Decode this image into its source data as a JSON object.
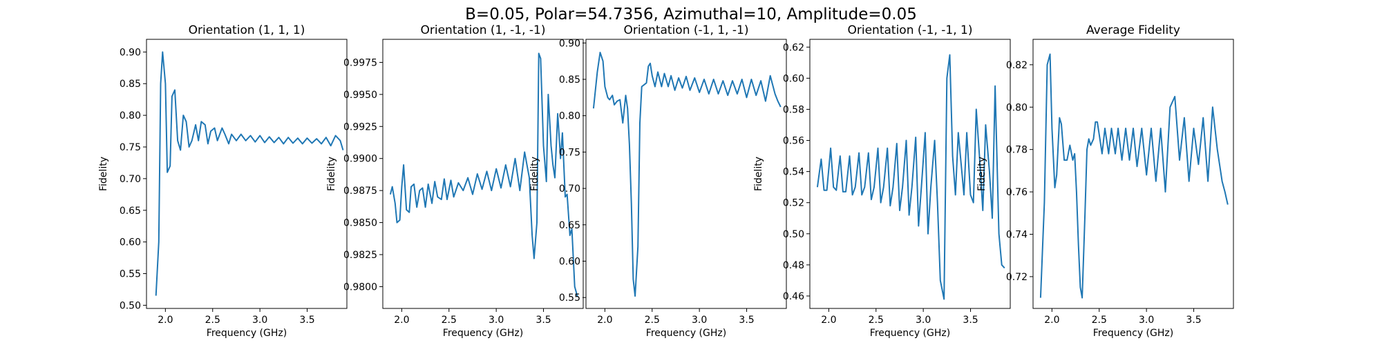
{
  "suptitle": "B=0.05, Polar=54.7356, Azimuthal=10, Amplitude=0.05",
  "line_color": "#1f77b4",
  "chart_data": [
    {
      "type": "line",
      "title": "Orientation (1, 1, 1)",
      "xlabel": "Frequency (GHz)",
      "ylabel": "Fidelity",
      "xlim": [
        1.8,
        3.92
      ],
      "ylim": [
        0.495,
        0.92
      ],
      "xticks": [
        2.0,
        2.5,
        3.0,
        3.5
      ],
      "xtick_labels": [
        "2.0",
        "2.5",
        "3.0",
        "3.5"
      ],
      "yticks": [
        0.5,
        0.55,
        0.6,
        0.65,
        0.7,
        0.75,
        0.8,
        0.85,
        0.9
      ],
      "ytick_labels": [
        "0.50",
        "0.55",
        "0.60",
        "0.65",
        "0.70",
        "0.75",
        "0.80",
        "0.85",
        "0.90"
      ],
      "x": [
        1.9,
        1.93,
        1.95,
        1.97,
        2.0,
        2.02,
        2.05,
        2.07,
        2.1,
        2.13,
        2.16,
        2.19,
        2.22,
        2.25,
        2.28,
        2.32,
        2.35,
        2.38,
        2.42,
        2.45,
        2.48,
        2.52,
        2.55,
        2.6,
        2.63,
        2.67,
        2.7,
        2.75,
        2.8,
        2.85,
        2.9,
        2.95,
        3.0,
        3.05,
        3.1,
        3.15,
        3.2,
        3.25,
        3.3,
        3.35,
        3.4,
        3.45,
        3.5,
        3.55,
        3.6,
        3.65,
        3.7,
        3.75,
        3.8,
        3.85,
        3.88
      ],
      "y": [
        0.515,
        0.6,
        0.85,
        0.9,
        0.85,
        0.71,
        0.72,
        0.83,
        0.84,
        0.76,
        0.745,
        0.8,
        0.79,
        0.75,
        0.76,
        0.785,
        0.76,
        0.79,
        0.785,
        0.755,
        0.775,
        0.78,
        0.76,
        0.78,
        0.77,
        0.755,
        0.77,
        0.76,
        0.77,
        0.76,
        0.768,
        0.758,
        0.768,
        0.757,
        0.766,
        0.757,
        0.765,
        0.755,
        0.765,
        0.756,
        0.764,
        0.755,
        0.764,
        0.756,
        0.763,
        0.755,
        0.765,
        0.752,
        0.768,
        0.76,
        0.745
      ]
    },
    {
      "type": "line",
      "title": "Orientation (1, -1, -1)",
      "xlabel": "Frequency (GHz)",
      "ylabel": "Fidelity",
      "xlim": [
        1.8,
        3.92
      ],
      "ylim": [
        0.9783,
        0.9993
      ],
      "xticks": [
        2.0,
        2.5,
        3.0,
        3.5
      ],
      "xtick_labels": [
        "2.0",
        "2.5",
        "3.0",
        "3.5"
      ],
      "yticks": [
        0.98,
        0.9825,
        0.985,
        0.9875,
        0.99,
        0.9925,
        0.995,
        0.9975
      ],
      "ytick_labels": [
        "0.9800",
        "0.9825",
        "0.9850",
        "0.9875",
        "0.9900",
        "0.9925",
        "0.9950",
        "0.9975"
      ],
      "x": [
        1.88,
        1.9,
        1.93,
        1.95,
        1.98,
        2.0,
        2.02,
        2.05,
        2.08,
        2.1,
        2.13,
        2.16,
        2.19,
        2.22,
        2.25,
        2.28,
        2.32,
        2.35,
        2.38,
        2.42,
        2.45,
        2.48,
        2.52,
        2.55,
        2.6,
        2.65,
        2.7,
        2.75,
        2.8,
        2.85,
        2.9,
        2.95,
        3.0,
        3.05,
        3.1,
        3.15,
        3.2,
        3.25,
        3.3,
        3.35,
        3.38,
        3.4,
        3.43,
        3.45,
        3.47,
        3.5,
        3.53,
        3.55,
        3.58,
        3.6,
        3.62,
        3.65,
        3.68,
        3.7,
        3.73,
        3.75,
        3.78,
        3.8,
        3.83,
        3.86
      ],
      "y": [
        0.9872,
        0.9878,
        0.9865,
        0.985,
        0.9852,
        0.9878,
        0.9895,
        0.986,
        0.9858,
        0.9878,
        0.988,
        0.9862,
        0.9875,
        0.9877,
        0.9862,
        0.988,
        0.9865,
        0.9882,
        0.987,
        0.9868,
        0.9884,
        0.9868,
        0.9883,
        0.987,
        0.9881,
        0.9875,
        0.9885,
        0.9872,
        0.9888,
        0.9876,
        0.989,
        0.9875,
        0.9892,
        0.9877,
        0.9895,
        0.9878,
        0.99,
        0.9875,
        0.9905,
        0.9885,
        0.984,
        0.9822,
        0.985,
        0.9982,
        0.9978,
        0.991,
        0.9882,
        0.995,
        0.991,
        0.9895,
        0.9885,
        0.9935,
        0.99,
        0.992,
        0.987,
        0.9872,
        0.984,
        0.9845,
        0.98,
        0.9792
      ]
    },
    {
      "type": "line",
      "title": "Orientation (-1, 1, -1)",
      "xlabel": "Frequency (GHz)",
      "ylabel": "Fidelity",
      "xlim": [
        1.8,
        3.92
      ],
      "ylim": [
        0.535,
        0.905
      ],
      "xticks": [
        2.0,
        2.5,
        3.0,
        3.5
      ],
      "xtick_labels": [
        "2.0",
        "2.5",
        "3.0",
        "3.5"
      ],
      "yticks": [
        0.55,
        0.6,
        0.65,
        0.7,
        0.75,
        0.8,
        0.85,
        0.9
      ],
      "ytick_labels": [
        "0.55",
        "0.60",
        "0.65",
        "0.70",
        "0.75",
        "0.80",
        "0.85",
        "0.90"
      ],
      "x": [
        1.88,
        1.92,
        1.95,
        1.98,
        2.0,
        2.03,
        2.05,
        2.08,
        2.1,
        2.13,
        2.16,
        2.19,
        2.22,
        2.24,
        2.26,
        2.28,
        2.3,
        2.32,
        2.35,
        2.37,
        2.39,
        2.41,
        2.44,
        2.46,
        2.48,
        2.5,
        2.53,
        2.56,
        2.6,
        2.63,
        2.67,
        2.7,
        2.74,
        2.78,
        2.82,
        2.86,
        2.9,
        2.95,
        3.0,
        3.05,
        3.1,
        3.15,
        3.2,
        3.25,
        3.3,
        3.35,
        3.4,
        3.45,
        3.5,
        3.55,
        3.6,
        3.65,
        3.7,
        3.75,
        3.8,
        3.83,
        3.86
      ],
      "y": [
        0.81,
        0.86,
        0.887,
        0.875,
        0.84,
        0.825,
        0.822,
        0.828,
        0.815,
        0.82,
        0.822,
        0.79,
        0.828,
        0.81,
        0.76,
        0.68,
        0.575,
        0.552,
        0.62,
        0.79,
        0.84,
        0.842,
        0.845,
        0.868,
        0.872,
        0.855,
        0.84,
        0.86,
        0.84,
        0.858,
        0.84,
        0.855,
        0.835,
        0.852,
        0.838,
        0.854,
        0.835,
        0.852,
        0.832,
        0.85,
        0.83,
        0.85,
        0.83,
        0.848,
        0.828,
        0.848,
        0.83,
        0.85,
        0.825,
        0.85,
        0.828,
        0.848,
        0.82,
        0.855,
        0.83,
        0.82,
        0.812
      ]
    },
    {
      "type": "line",
      "title": "Orientation (-1, -1, 1)",
      "xlabel": "Frequency (GHz)",
      "ylabel": "Fidelity",
      "xlim": [
        1.8,
        3.92
      ],
      "ylim": [
        0.452,
        0.625
      ],
      "xticks": [
        2.0,
        2.5,
        3.0,
        3.5
      ],
      "xtick_labels": [
        "2.0",
        "2.5",
        "3.0",
        "3.5"
      ],
      "yticks": [
        0.46,
        0.48,
        0.5,
        0.52,
        0.54,
        0.56,
        0.58,
        0.6,
        0.62
      ],
      "ytick_labels": [
        "0.46",
        "0.48",
        "0.50",
        "0.52",
        "0.54",
        "0.56",
        "0.58",
        "0.60",
        "0.62"
      ],
      "x": [
        1.88,
        1.92,
        1.95,
        1.98,
        2.02,
        2.05,
        2.08,
        2.12,
        2.15,
        2.18,
        2.22,
        2.25,
        2.28,
        2.32,
        2.35,
        2.38,
        2.42,
        2.45,
        2.48,
        2.52,
        2.55,
        2.58,
        2.62,
        2.65,
        2.68,
        2.72,
        2.75,
        2.78,
        2.82,
        2.85,
        2.88,
        2.92,
        2.95,
        2.98,
        3.02,
        3.05,
        3.08,
        3.12,
        3.15,
        3.18,
        3.22,
        3.25,
        3.28,
        3.31,
        3.34,
        3.37,
        3.4,
        3.43,
        3.46,
        3.5,
        3.53,
        3.56,
        3.6,
        3.63,
        3.66,
        3.7,
        3.73,
        3.76,
        3.8,
        3.83,
        3.86
      ],
      "y": [
        0.53,
        0.548,
        0.528,
        0.528,
        0.555,
        0.53,
        0.528,
        0.55,
        0.527,
        0.527,
        0.55,
        0.525,
        0.53,
        0.552,
        0.525,
        0.53,
        0.552,
        0.522,
        0.53,
        0.555,
        0.52,
        0.53,
        0.555,
        0.518,
        0.53,
        0.558,
        0.515,
        0.53,
        0.56,
        0.512,
        0.53,
        0.562,
        0.505,
        0.53,
        0.565,
        0.5,
        0.53,
        0.56,
        0.52,
        0.47,
        0.458,
        0.6,
        0.615,
        0.55,
        0.525,
        0.565,
        0.545,
        0.525,
        0.565,
        0.525,
        0.52,
        0.58,
        0.545,
        0.515,
        0.57,
        0.54,
        0.51,
        0.595,
        0.5,
        0.48,
        0.478
      ]
    },
    {
      "type": "line",
      "title": "Average Fidelity",
      "xlabel": "Frequency (GHz)",
      "ylabel": "Fidelity",
      "xlim": [
        1.8,
        3.92
      ],
      "ylim": [
        0.705,
        0.832
      ],
      "xticks": [
        2.0,
        2.5,
        3.0,
        3.5
      ],
      "xtick_labels": [
        "2.0",
        "2.5",
        "3.0",
        "3.5"
      ],
      "yticks": [
        0.72,
        0.74,
        0.76,
        0.78,
        0.8,
        0.82
      ],
      "ytick_labels": [
        "0.72",
        "0.74",
        "0.76",
        "0.78",
        "0.80",
        "0.82"
      ],
      "x": [
        1.88,
        1.92,
        1.95,
        1.98,
        2.0,
        2.03,
        2.05,
        2.08,
        2.1,
        2.13,
        2.16,
        2.19,
        2.22,
        2.24,
        2.26,
        2.28,
        2.3,
        2.32,
        2.35,
        2.37,
        2.39,
        2.41,
        2.44,
        2.46,
        2.48,
        2.5,
        2.53,
        2.56,
        2.6,
        2.63,
        2.67,
        2.7,
        2.74,
        2.78,
        2.82,
        2.86,
        2.9,
        2.95,
        3.0,
        3.05,
        3.1,
        3.15,
        3.2,
        3.25,
        3.3,
        3.35,
        3.4,
        3.45,
        3.5,
        3.55,
        3.6,
        3.65,
        3.7,
        3.75,
        3.8,
        3.83,
        3.86
      ],
      "y": [
        0.71,
        0.755,
        0.82,
        0.825,
        0.79,
        0.762,
        0.768,
        0.795,
        0.792,
        0.775,
        0.775,
        0.782,
        0.775,
        0.778,
        0.76,
        0.735,
        0.715,
        0.71,
        0.75,
        0.78,
        0.785,
        0.782,
        0.785,
        0.793,
        0.793,
        0.787,
        0.778,
        0.79,
        0.778,
        0.79,
        0.778,
        0.79,
        0.775,
        0.79,
        0.775,
        0.79,
        0.772,
        0.79,
        0.768,
        0.79,
        0.765,
        0.79,
        0.76,
        0.8,
        0.805,
        0.775,
        0.795,
        0.765,
        0.79,
        0.773,
        0.795,
        0.765,
        0.8,
        0.78,
        0.765,
        0.76,
        0.754
      ]
    }
  ]
}
